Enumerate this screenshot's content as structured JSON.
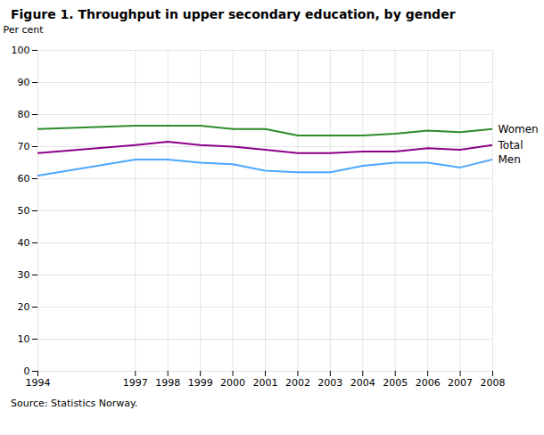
{
  "chart_data": {
    "type": "line",
    "title": "Figure 1. Throughput in upper secondary education, by gender",
    "ylabel": "Per cent",
    "source": "Source: Statistics Norway.",
    "x": [
      1994,
      1997,
      1998,
      1999,
      2000,
      2001,
      2002,
      2003,
      2004,
      2005,
      2006,
      2007,
      2008
    ],
    "series": [
      {
        "name": "Women",
        "color": "#2d8b2d",
        "values": [
          75.5,
          76.5,
          76.5,
          76.5,
          75.5,
          75.5,
          73.5,
          73.5,
          73.5,
          74.0,
          75.0,
          74.5,
          75.5
        ]
      },
      {
        "name": "Total",
        "color": "#8b008b",
        "values": [
          68.0,
          70.5,
          71.5,
          70.5,
          70.0,
          69.0,
          68.0,
          68.0,
          68.5,
          68.5,
          69.5,
          69.0,
          70.5
        ]
      },
      {
        "name": "Men",
        "color": "#4da6ff",
        "values": [
          61.0,
          66.0,
          66.0,
          65.0,
          64.5,
          62.5,
          62.0,
          62.0,
          64.0,
          65.0,
          65.0,
          63.5,
          66.0
        ]
      }
    ],
    "xlim": [
      1994,
      2008
    ],
    "xticks": [
      1994,
      1997,
      1998,
      1999,
      2000,
      2001,
      2002,
      2003,
      2004,
      2005,
      2006,
      2007,
      2008
    ],
    "ylim": [
      0,
      100
    ],
    "yticks": [
      0,
      10,
      20,
      30,
      40,
      50,
      60,
      70,
      80,
      90,
      100
    ],
    "grid": true
  }
}
